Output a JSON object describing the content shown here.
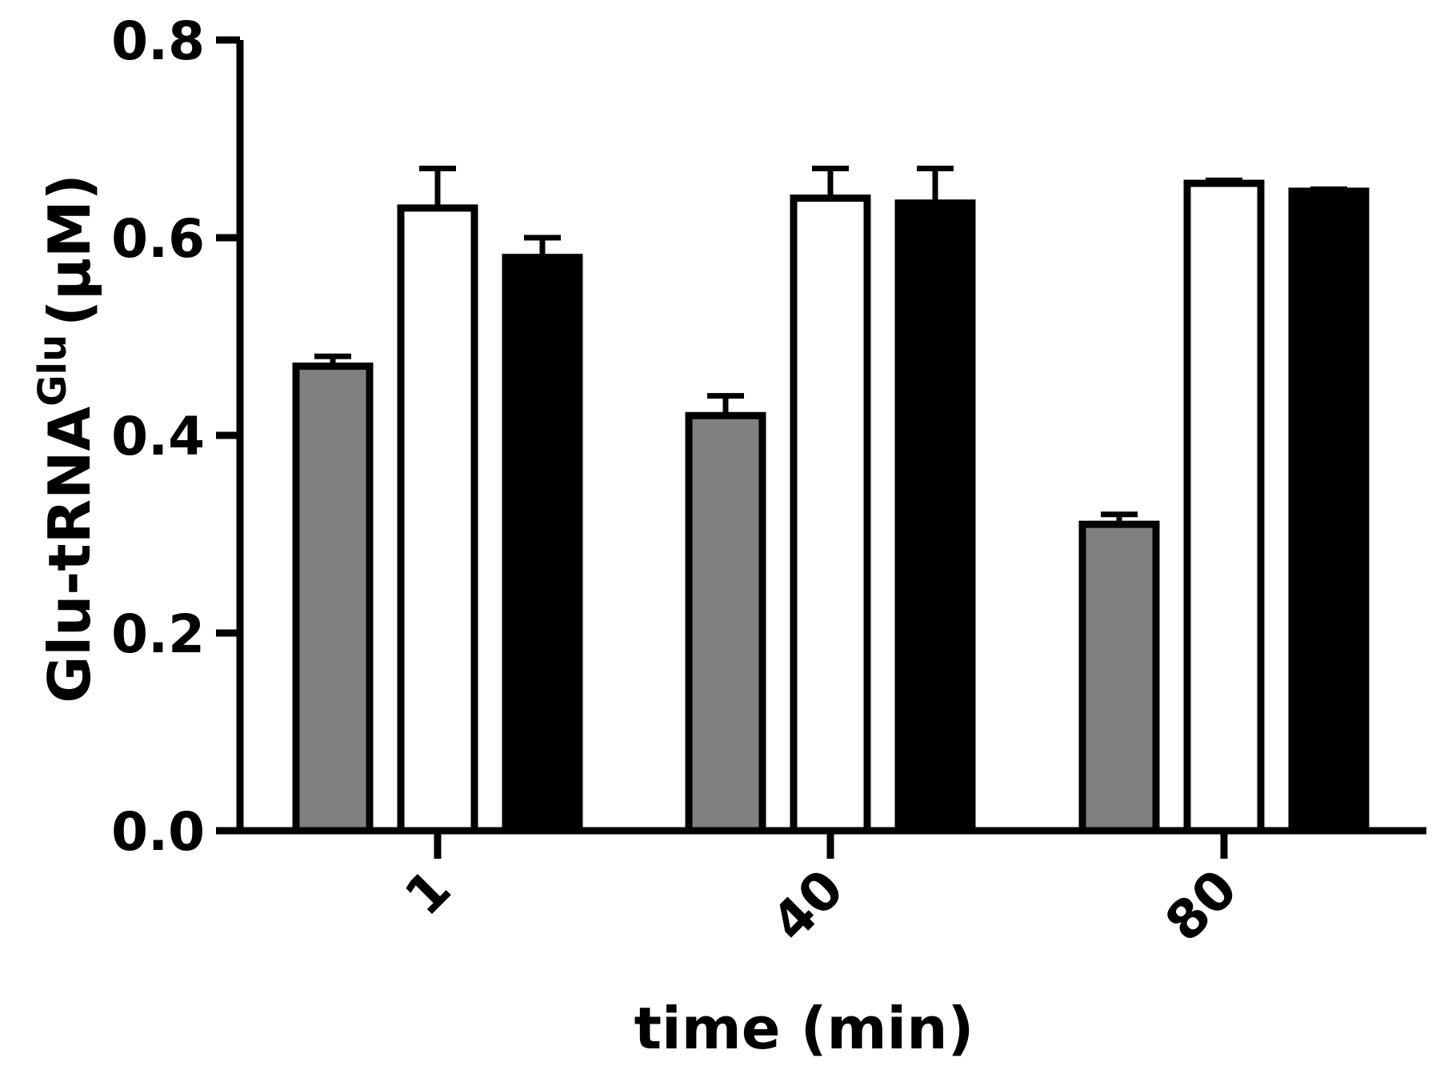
{
  "chart_data": {
    "type": "bar",
    "xlabel": "time (min)",
    "ylabel": {
      "main": "Glu-tRNA",
      "superscript": "Glu",
      "unit": "(μM)"
    },
    "categories": [
      "1",
      "40",
      "80"
    ],
    "ylim": [
      0,
      0.8
    ],
    "yticks": [
      "0.0",
      "0.2",
      "0.4",
      "0.6",
      "0.8"
    ],
    "grid": false,
    "series": [
      {
        "color": "#808080",
        "values": [
          0.47,
          0.42,
          0.31
        ],
        "errors": [
          0.01,
          0.02,
          0.01
        ]
      },
      {
        "color": "#ffffff",
        "values": [
          0.63,
          0.64,
          0.655
        ],
        "errors": [
          0.04,
          0.03,
          0.003
        ]
      },
      {
        "color": "#000000",
        "values": [
          0.58,
          0.635,
          0.647
        ],
        "errors": [
          0.02,
          0.035,
          0.002
        ]
      }
    ]
  }
}
